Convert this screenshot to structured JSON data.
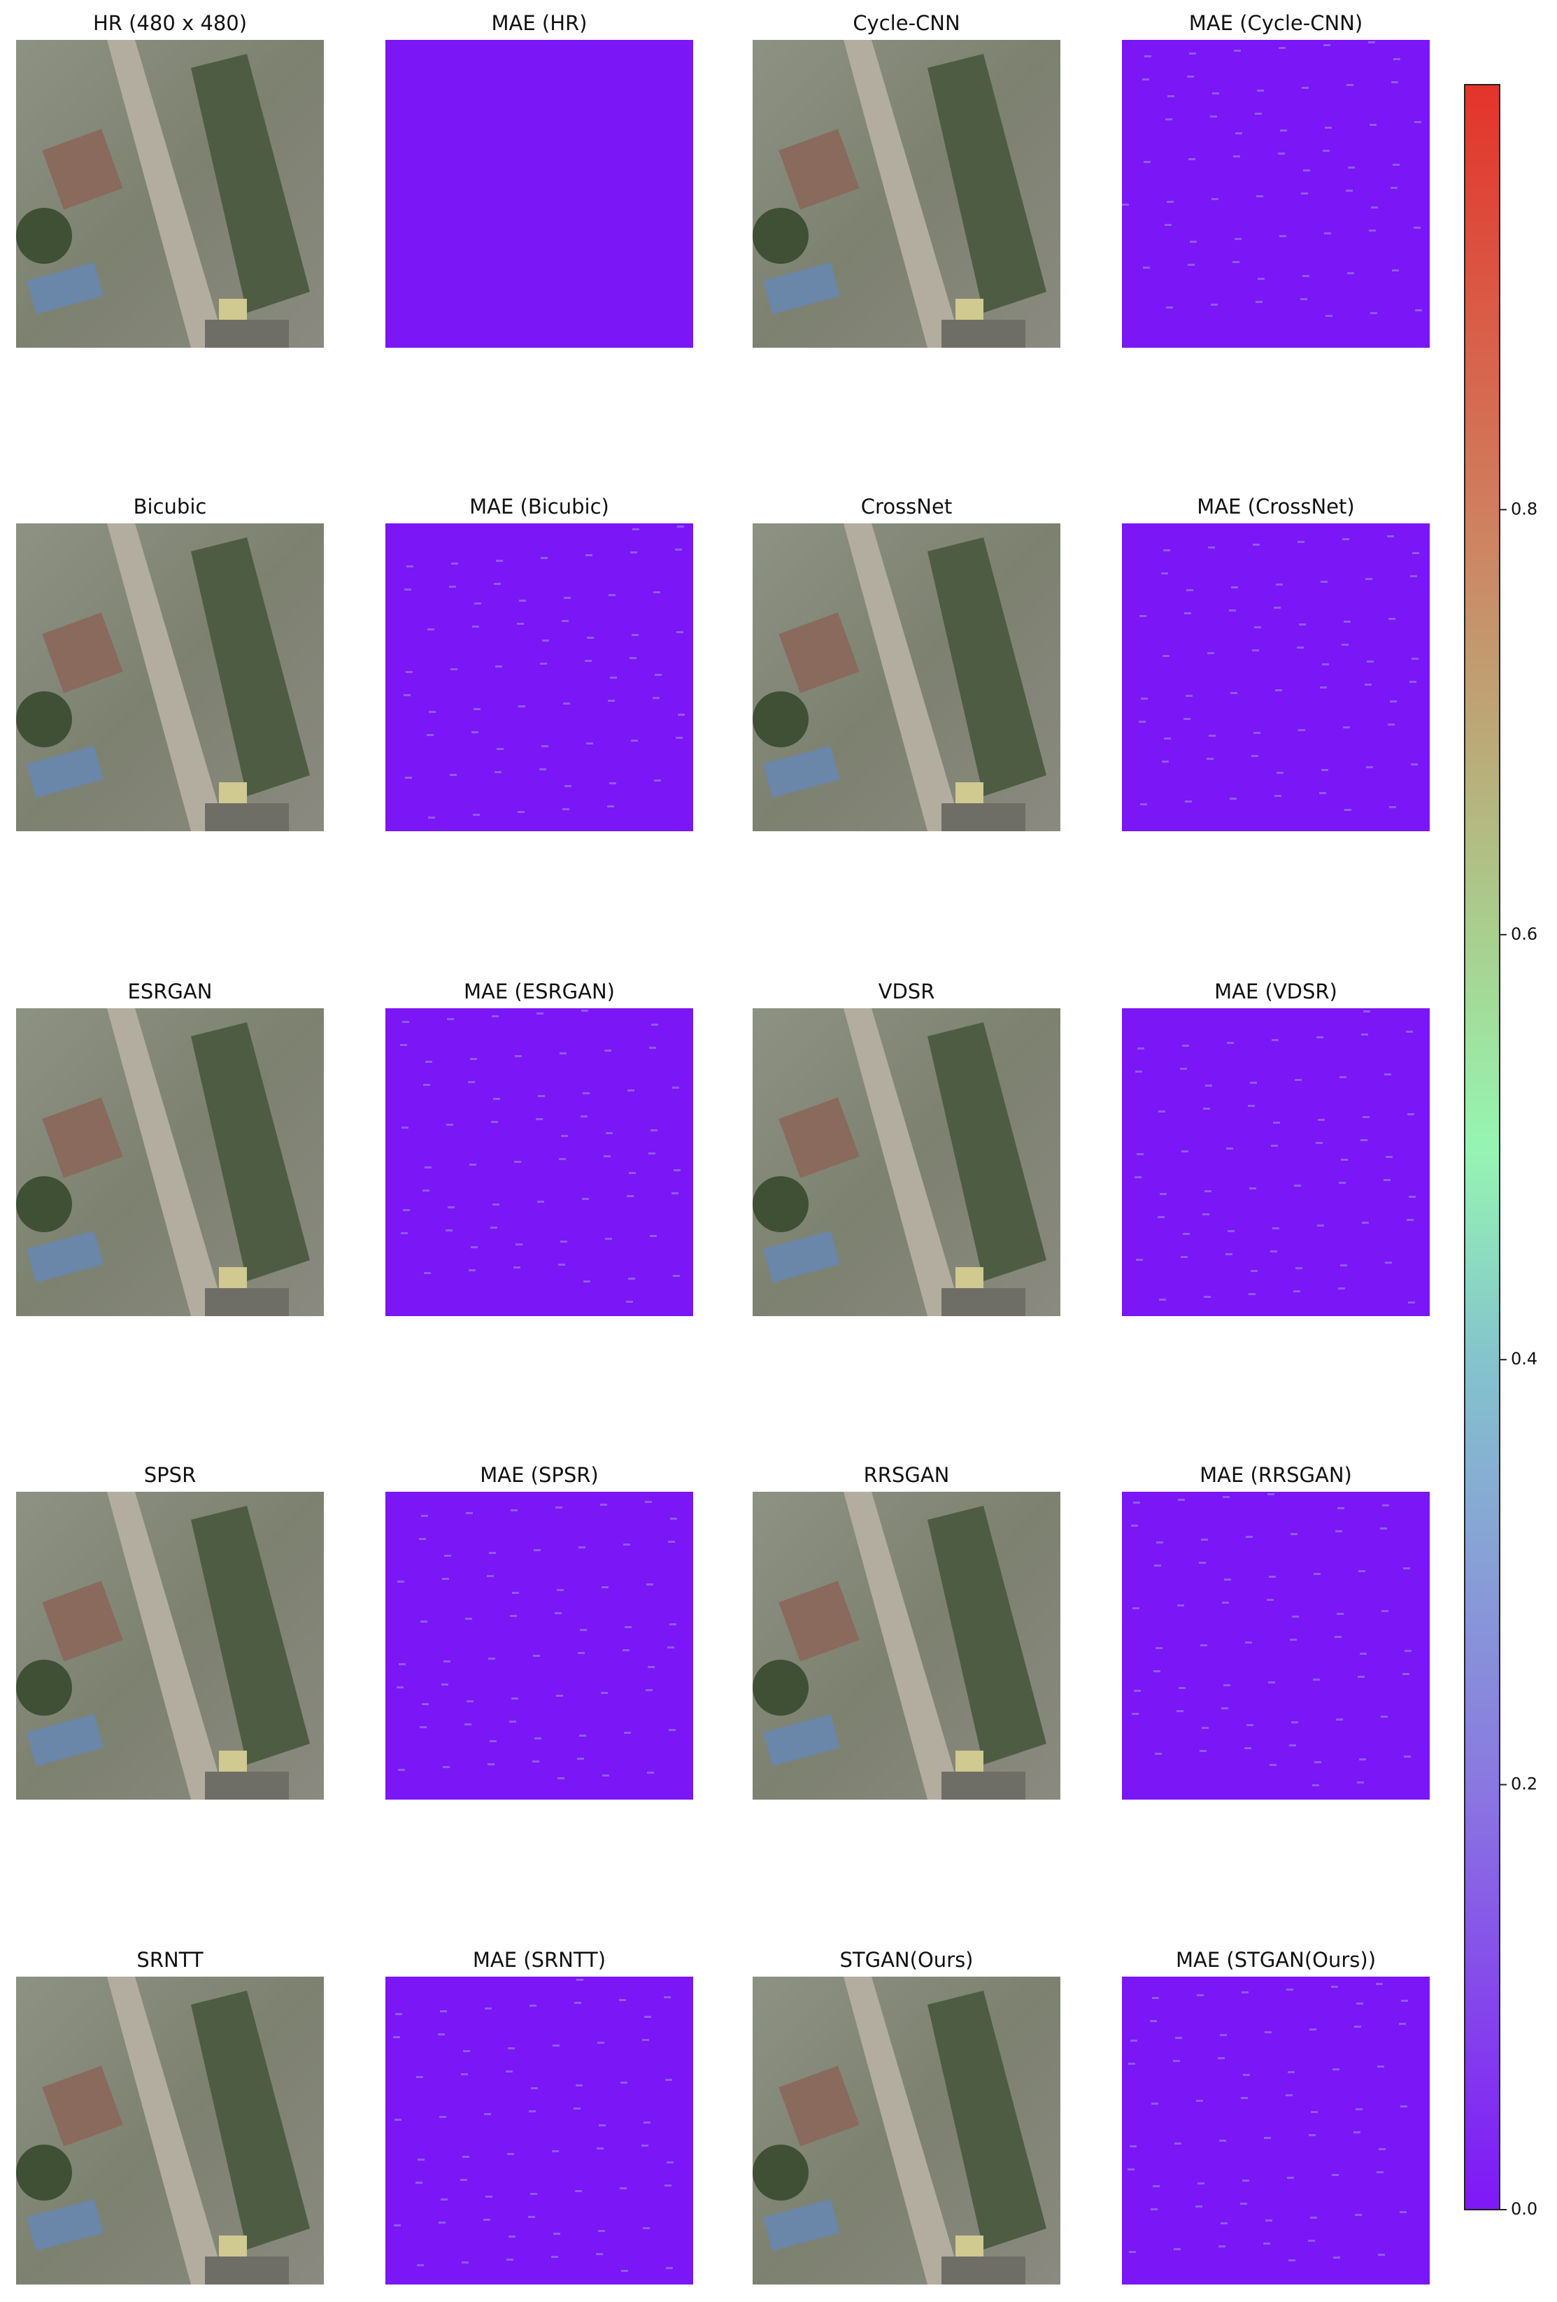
{
  "chart_data": {
    "type": "image-grid",
    "panels": [
      "HR (480 x 480)",
      "MAE (HR)",
      "Cycle-CNN",
      "MAE (Cycle-CNN)",
      "Bicubic",
      "MAE (Bicubic)",
      "CrossNet",
      "MAE (CrossNet)",
      "ESRGAN",
      "MAE (ESRGAN)",
      "VDSR",
      "MAE (VDSR)",
      "SPSR",
      "MAE (SPSR)",
      "RRSGAN",
      "MAE (RRSGAN)",
      "SRNTT",
      "MAE (SRNTT)",
      "STGAN(Ours)",
      "MAE (STGAN(Ours))"
    ],
    "colorbar": {
      "ylim": [
        0,
        1
      ],
      "yticks": [
        {
          "value": 0,
          "label": "0.0"
        },
        {
          "value": 0.2,
          "label": "0.2"
        },
        {
          "value": 0.4,
          "label": "0.4"
        },
        {
          "value": 0.6,
          "label": "0.6"
        },
        {
          "value": 0.8,
          "label": "0.8"
        }
      ]
    }
  }
}
